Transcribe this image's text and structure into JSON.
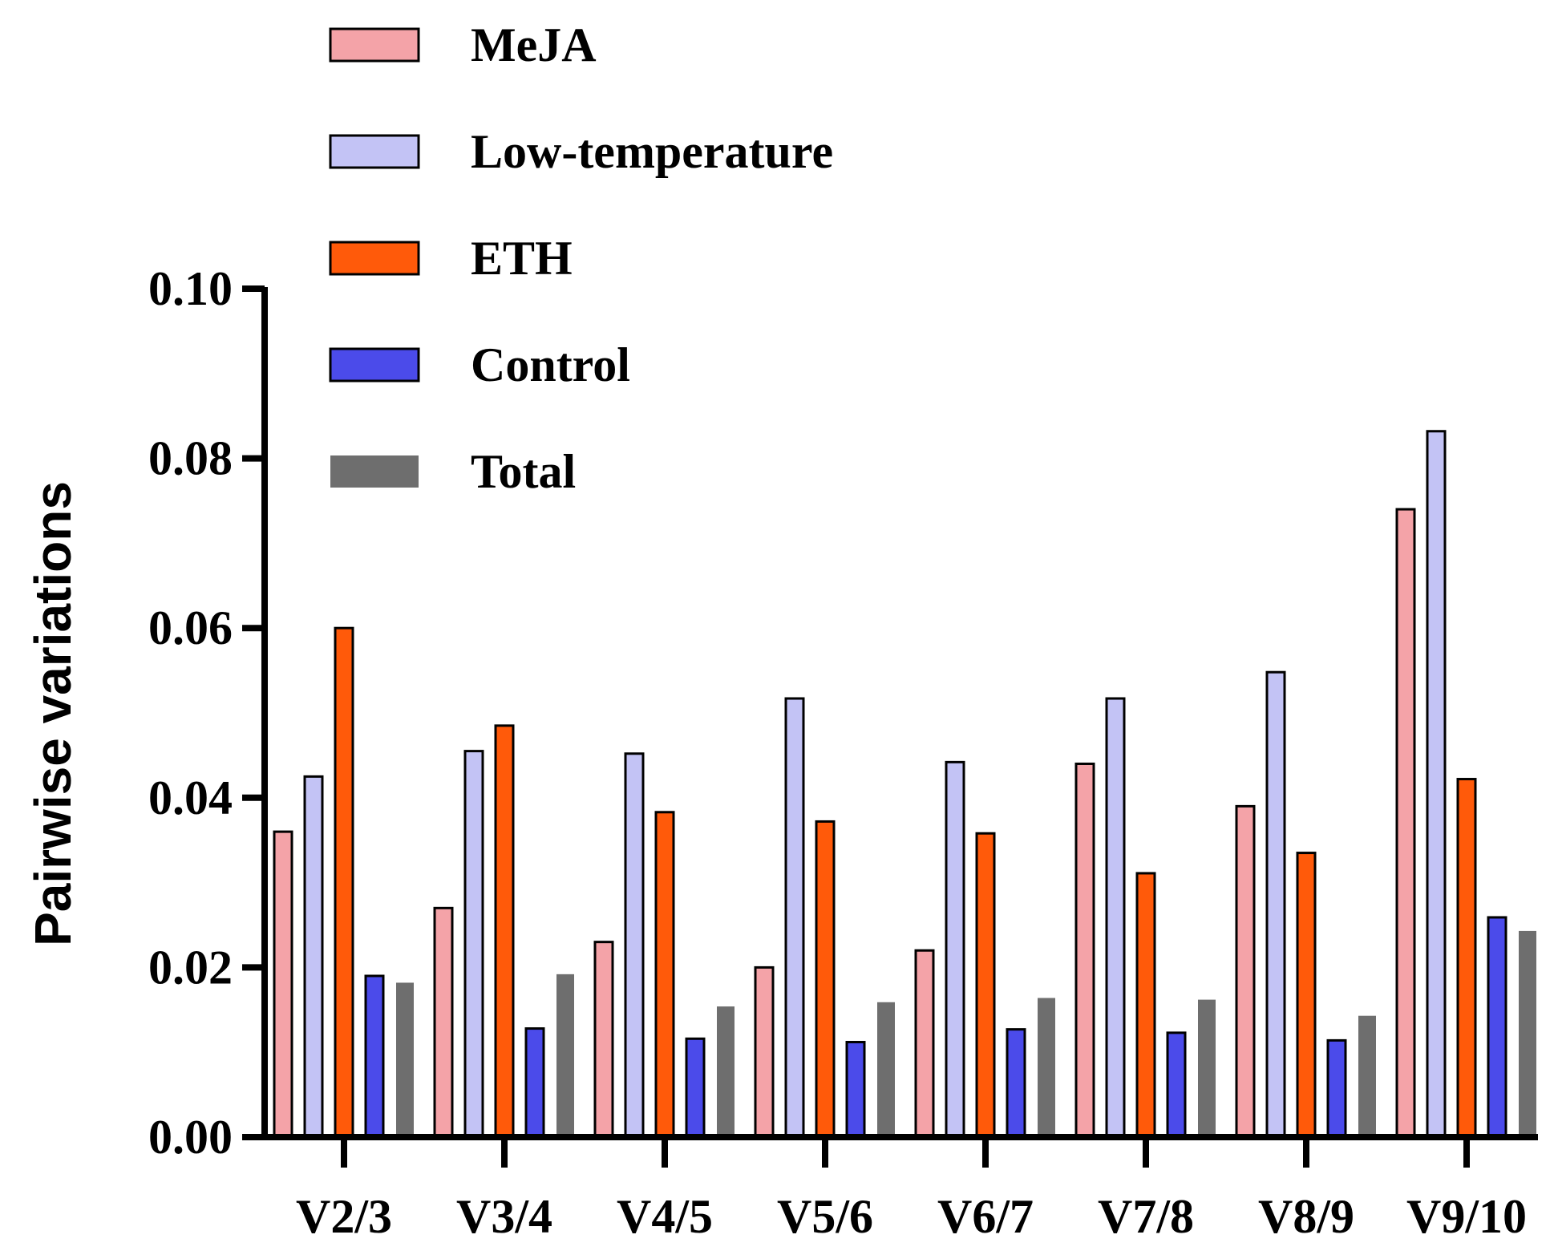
{
  "chart_data": {
    "type": "bar",
    "title": "",
    "xlabel": "",
    "ylabel": "Pairwise variations",
    "ylim": [
      0,
      0.1
    ],
    "yticks": [
      "0.00",
      "0.02",
      "0.04",
      "0.06",
      "0.08",
      "0.10"
    ],
    "ytick_values": [
      0,
      0.02,
      0.04,
      0.06,
      0.08,
      0.1
    ],
    "categories": [
      "V2/3",
      "V3/4",
      "V4/5",
      "V5/6",
      "V6/7",
      "V7/8",
      "V8/9",
      "V9/10"
    ],
    "legend_position": "top-left",
    "grid": false,
    "series": [
      {
        "name": "MeJA",
        "color": "#f4a3a8",
        "border": true,
        "values": [
          0.036,
          0.027,
          0.023,
          0.02,
          0.022,
          0.044,
          0.039,
          0.074
        ]
      },
      {
        "name": "Low-temperature",
        "color": "#c3c3f5",
        "border": true,
        "values": [
          0.0425,
          0.0455,
          0.0452,
          0.0517,
          0.0442,
          0.0517,
          0.0548,
          0.0832
        ]
      },
      {
        "name": "ETH",
        "color": "#ff5a0a",
        "border": true,
        "values": [
          0.06,
          0.0485,
          0.0383,
          0.0372,
          0.0358,
          0.0311,
          0.0335,
          0.0422
        ]
      },
      {
        "name": "Control",
        "color": "#4b4bea",
        "border": true,
        "values": [
          0.019,
          0.0128,
          0.0116,
          0.0112,
          0.0127,
          0.0123,
          0.0114,
          0.0259
        ]
      },
      {
        "name": "Total",
        "color": "#6e6e6e",
        "border": false,
        "values": [
          0.0182,
          0.0192,
          0.0154,
          0.0159,
          0.0164,
          0.0162,
          0.0143,
          0.0243
        ]
      }
    ]
  }
}
